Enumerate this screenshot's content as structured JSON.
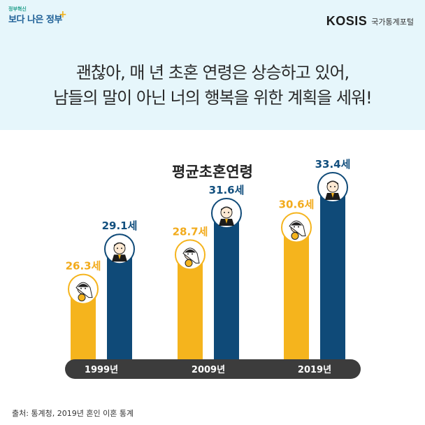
{
  "header": {
    "logo_left_small": "정부혁신",
    "logo_left_big": "보다 나은 정부",
    "logo_right_brand": "KOSIS",
    "logo_right_sub": "국가통계포털",
    "headline_line1": "괜찮아, 매 년 초혼 연령은 상승하고 있어,",
    "headline_line2": "남들의 말이 아닌 너의 행복을 위한 계획을 세워!"
  },
  "chart_data": {
    "type": "bar",
    "title": "평균초혼연령",
    "categories": [
      "1999년",
      "2009년",
      "2019년"
    ],
    "series": [
      {
        "values": [
          26.3,
          28.7,
          30.6
        ],
        "color": "#f5b41d",
        "icon": "bride-icon"
      },
      {
        "values": [
          29.1,
          31.6,
          33.4
        ],
        "color": "#0f4a78",
        "icon": "groom-icon"
      }
    ],
    "value_labels": [
      [
        "26.3세",
        "28.7세",
        "30.6세"
      ],
      [
        "29.1세",
        "31.6세",
        "33.4세"
      ]
    ],
    "label_colors": [
      "#f2ab1c",
      "#124f7e"
    ],
    "axis_color": "#3c3c3c",
    "ylim": [
      21.5,
      34.8
    ],
    "grid": false
  },
  "footer": {
    "source": "출처: 통계청, 2019년 혼인 이혼 통계"
  }
}
